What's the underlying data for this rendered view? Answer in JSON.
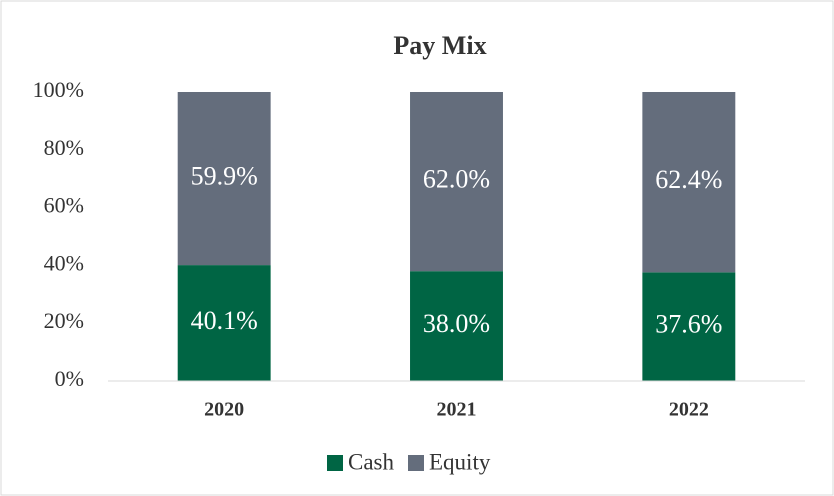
{
  "chart_data": {
    "type": "stacked_bar",
    "title": "Pay Mix",
    "categories": [
      "2020",
      "2021",
      "2022"
    ],
    "series": [
      {
        "name": "Cash",
        "color": "#006544",
        "values": [
          40.1,
          38.0,
          37.6
        ],
        "value_labels": [
          "40.1%",
          "38.0%",
          "37.6%"
        ]
      },
      {
        "name": "Equity",
        "color": "#646d7c",
        "values": [
          59.9,
          62.0,
          62.4
        ],
        "value_labels": [
          "59.9%",
          "62.0%",
          "62.4%"
        ]
      }
    ],
    "ylim": [
      0,
      100
    ],
    "yticks": [
      {
        "value": 0,
        "label": "0%"
      },
      {
        "value": 20,
        "label": "20%"
      },
      {
        "value": 40,
        "label": "40%"
      },
      {
        "value": 60,
        "label": "60%"
      },
      {
        "value": 80,
        "label": "80%"
      },
      {
        "value": 100,
        "label": "100%"
      }
    ],
    "grid": false,
    "legend": "bottom"
  }
}
